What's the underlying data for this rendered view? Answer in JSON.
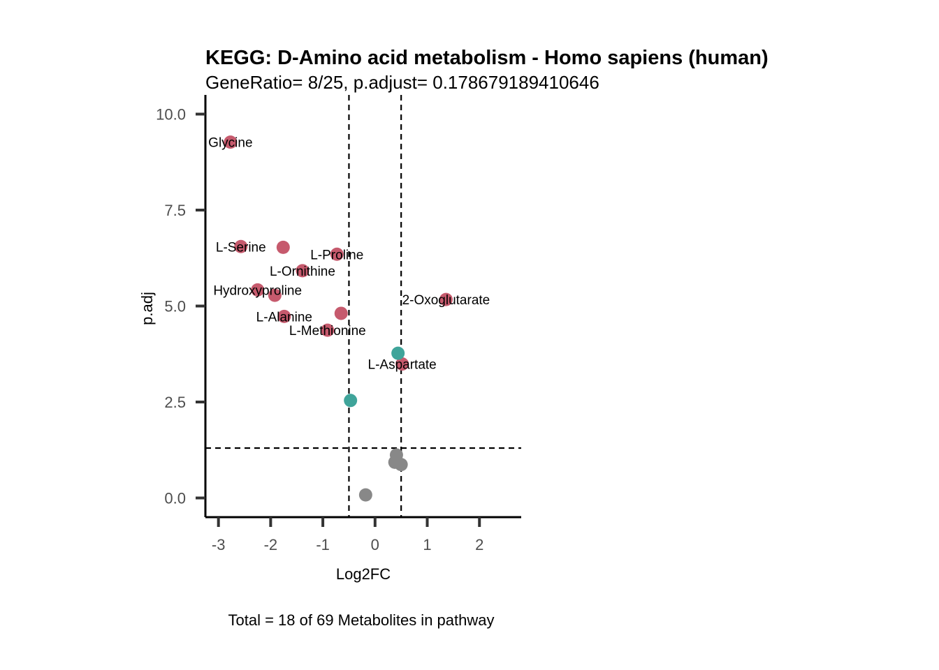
{
  "chart_data": {
    "type": "scatter",
    "title": "KEGG: D-Amino acid metabolism - Homo sapiens (human)",
    "subtitle": "GeneRatio= 8/25, p.adjust= 0.178679189410646",
    "xlabel": "Log2FC",
    "ylabel": "p.adj",
    "caption": "Total = 18 of 69 Metabolites in pathway",
    "xlim": [
      -3.25,
      2.8
    ],
    "ylim": [
      -0.5,
      10.5
    ],
    "x_ticks": [
      {
        "value": -3,
        "label": "-3"
      },
      {
        "value": -2,
        "label": "-2"
      },
      {
        "value": -1,
        "label": "-1"
      },
      {
        "value": 0,
        "label": "0"
      },
      {
        "value": 1,
        "label": "1"
      },
      {
        "value": 2,
        "label": "2"
      }
    ],
    "y_ticks": [
      {
        "value": 0,
        "label": "0.0"
      },
      {
        "value": 2.5,
        "label": "2.5"
      },
      {
        "value": 5,
        "label": "5.0"
      },
      {
        "value": 7.5,
        "label": "7.5"
      },
      {
        "value": 10,
        "label": "10.0"
      }
    ],
    "thresholds": {
      "vertical": [
        -0.5,
        0.5
      ],
      "horizontal": [
        1.3
      ]
    },
    "grid": false,
    "legend": "none",
    "colors": {
      "down": "#c65a6d",
      "up": "#3fa49a",
      "ns": "#888888"
    },
    "points": [
      {
        "x": -2.77,
        "y": 9.27,
        "group": "down"
      },
      {
        "x": -2.57,
        "y": 6.55,
        "group": "down"
      },
      {
        "x": -1.76,
        "y": 6.53,
        "group": "down"
      },
      {
        "x": -0.73,
        "y": 6.35,
        "group": "down"
      },
      {
        "x": -1.39,
        "y": 5.92,
        "group": "down"
      },
      {
        "x": -2.25,
        "y": 5.42,
        "group": "down"
      },
      {
        "x": -1.92,
        "y": 5.28,
        "group": "down"
      },
      {
        "x": -0.65,
        "y": 4.81,
        "group": "down"
      },
      {
        "x": -1.74,
        "y": 4.73,
        "group": "down"
      },
      {
        "x": -0.91,
        "y": 4.37,
        "group": "down"
      },
      {
        "x": 1.36,
        "y": 5.17,
        "group": "down"
      },
      {
        "x": 0.52,
        "y": 3.49,
        "group": "down"
      },
      {
        "x": 0.44,
        "y": 3.77,
        "group": "up"
      },
      {
        "x": -0.47,
        "y": 2.54,
        "group": "up"
      },
      {
        "x": 0.41,
        "y": 1.12,
        "group": "ns"
      },
      {
        "x": 0.38,
        "y": 0.93,
        "group": "ns"
      },
      {
        "x": 0.5,
        "y": 0.87,
        "group": "ns"
      },
      {
        "x": -0.18,
        "y": 0.08,
        "group": "ns"
      }
    ],
    "labels": [
      {
        "text": "Glycine",
        "x": -2.77,
        "y": 9.27
      },
      {
        "text": "L-Serine",
        "x": -2.57,
        "y": 6.55
      },
      {
        "text": "L-Proline",
        "x": -0.73,
        "y": 6.35
      },
      {
        "text": "L-Ornithine",
        "x": -1.39,
        "y": 5.92
      },
      {
        "text": "Hydroxyproline",
        "x": -2.25,
        "y": 5.42
      },
      {
        "text": "2-Oxoglutarate",
        "x": 1.36,
        "y": 5.17
      },
      {
        "text": "L-Alanine",
        "x": -1.74,
        "y": 4.73
      },
      {
        "text": "L-Methionine",
        "x": -0.91,
        "y": 4.37
      },
      {
        "text": "L-Aspartate",
        "x": 0.52,
        "y": 3.49
      }
    ]
  }
}
